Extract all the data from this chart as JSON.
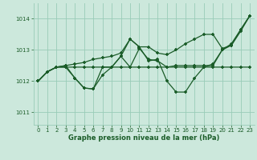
{
  "background_color": "#cce8dc",
  "grid_color": "#99ccb8",
  "line_color": "#1a5c28",
  "text_color": "#1a5c28",
  "xlabel": "Graphe pression niveau de la mer (hPa)",
  "xlim": [
    -0.5,
    23.5
  ],
  "ylim": [
    1010.6,
    1014.5
  ],
  "yticks": [
    1011,
    1012,
    1013,
    1014
  ],
  "xticks": [
    0,
    1,
    2,
    3,
    4,
    5,
    6,
    7,
    8,
    9,
    10,
    11,
    12,
    13,
    14,
    15,
    16,
    17,
    18,
    19,
    20,
    21,
    22,
    23
  ],
  "s1": [
    1012.0,
    1012.3,
    1012.45,
    1012.45,
    1012.1,
    1011.78,
    1011.75,
    1012.2,
    1012.45,
    1012.8,
    1013.35,
    1013.1,
    1012.65,
    1012.7,
    1012.0,
    1011.65,
    1011.65,
    1012.1,
    1012.45,
    1012.55,
    1013.0,
    1013.15,
    1013.6,
    1014.1
  ],
  "s2": [
    1012.0,
    1012.3,
    1012.45,
    1012.45,
    1012.45,
    1012.45,
    1012.45,
    1012.45,
    1012.45,
    1012.45,
    1012.45,
    1012.45,
    1012.45,
    1012.45,
    1012.45,
    1012.45,
    1012.45,
    1012.45,
    1012.45,
    1012.45,
    1012.45,
    1012.45,
    1012.45,
    1012.45
  ],
  "s3": [
    1012.0,
    1012.3,
    1012.45,
    1012.5,
    1012.55,
    1012.6,
    1012.7,
    1012.75,
    1012.8,
    1012.9,
    1013.35,
    1013.1,
    1013.1,
    1012.9,
    1012.85,
    1013.0,
    1013.2,
    1013.35,
    1013.5,
    1013.5,
    1013.05,
    1013.15,
    1013.65,
    1014.1
  ],
  "s4": [
    1012.0,
    1012.3,
    1012.45,
    1012.5,
    1012.1,
    1011.78,
    1011.75,
    1012.45,
    1012.45,
    1012.8,
    1012.45,
    1013.05,
    1012.7,
    1012.65,
    1012.45,
    1012.5,
    1012.5,
    1012.5,
    1012.5,
    1012.5,
    1013.0,
    1013.2,
    1013.65,
    1014.1
  ]
}
